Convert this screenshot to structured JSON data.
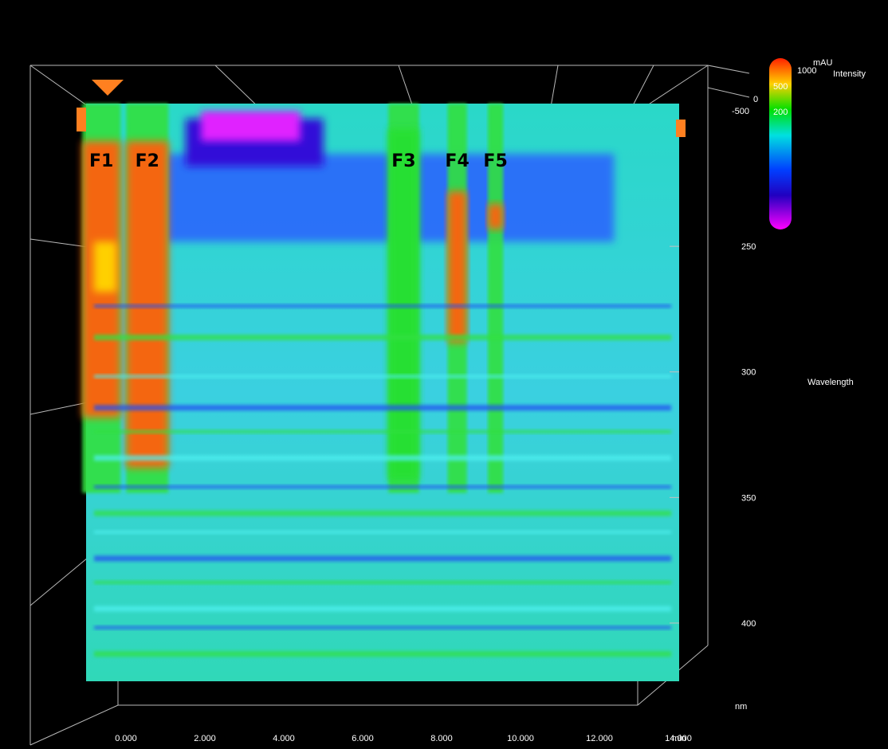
{
  "chart_data": {
    "type": "heatmap",
    "title": "",
    "xlabel": "min",
    "ylabel": "Wavelength",
    "y_unit": "nm",
    "zlabel": "Intensity",
    "z_unit": "mAU",
    "xlim": [
      0,
      15.5
    ],
    "ylim": [
      190,
      420
    ],
    "x_ticks": [
      "0.000",
      "2.000",
      "4.000",
      "6.000",
      "8.000",
      "10.000",
      "12.000",
      "14.000"
    ],
    "x_tick_values": [
      0,
      2,
      4,
      6,
      8,
      10,
      12,
      14
    ],
    "y_ticks": [
      "250",
      "300",
      "350",
      "400"
    ],
    "y_tick_values": [
      250,
      300,
      350,
      400
    ],
    "z_ticks": [
      "1000",
      "500",
      "200",
      "0",
      "-500"
    ],
    "colorbar_labels": [
      "1000",
      "500",
      "200"
    ],
    "colorbar_colors": [
      "#ff2000",
      "#ffd000",
      "#00e000",
      "#00e0e0",
      "#0040ff",
      "#2000c0",
      "#ff00ff"
    ],
    "peaks": [
      {
        "label": "F1",
        "x": 0.4
      },
      {
        "label": "F2",
        "x": 1.6
      },
      {
        "label": "F3",
        "x": 8.3
      },
      {
        "label": "F4",
        "x": 9.7
      },
      {
        "label": "F5",
        "x": 10.7
      }
    ],
    "bands": [
      {
        "x": 0.4,
        "xwidth": 1.0,
        "y0": 205,
        "y1": 315,
        "level": "high"
      },
      {
        "x": 1.6,
        "xwidth": 1.1,
        "y0": 205,
        "y1": 335,
        "level": "high"
      },
      {
        "x": 8.3,
        "xwidth": 0.8,
        "y0": 200,
        "y1": 340,
        "level": "mid"
      },
      {
        "x": 9.7,
        "xwidth": 0.5,
        "y0": 225,
        "y1": 285,
        "level": "high"
      },
      {
        "x": 10.7,
        "xwidth": 0.4,
        "y0": 230,
        "y1": 240,
        "level": "high"
      }
    ],
    "grid": true
  }
}
